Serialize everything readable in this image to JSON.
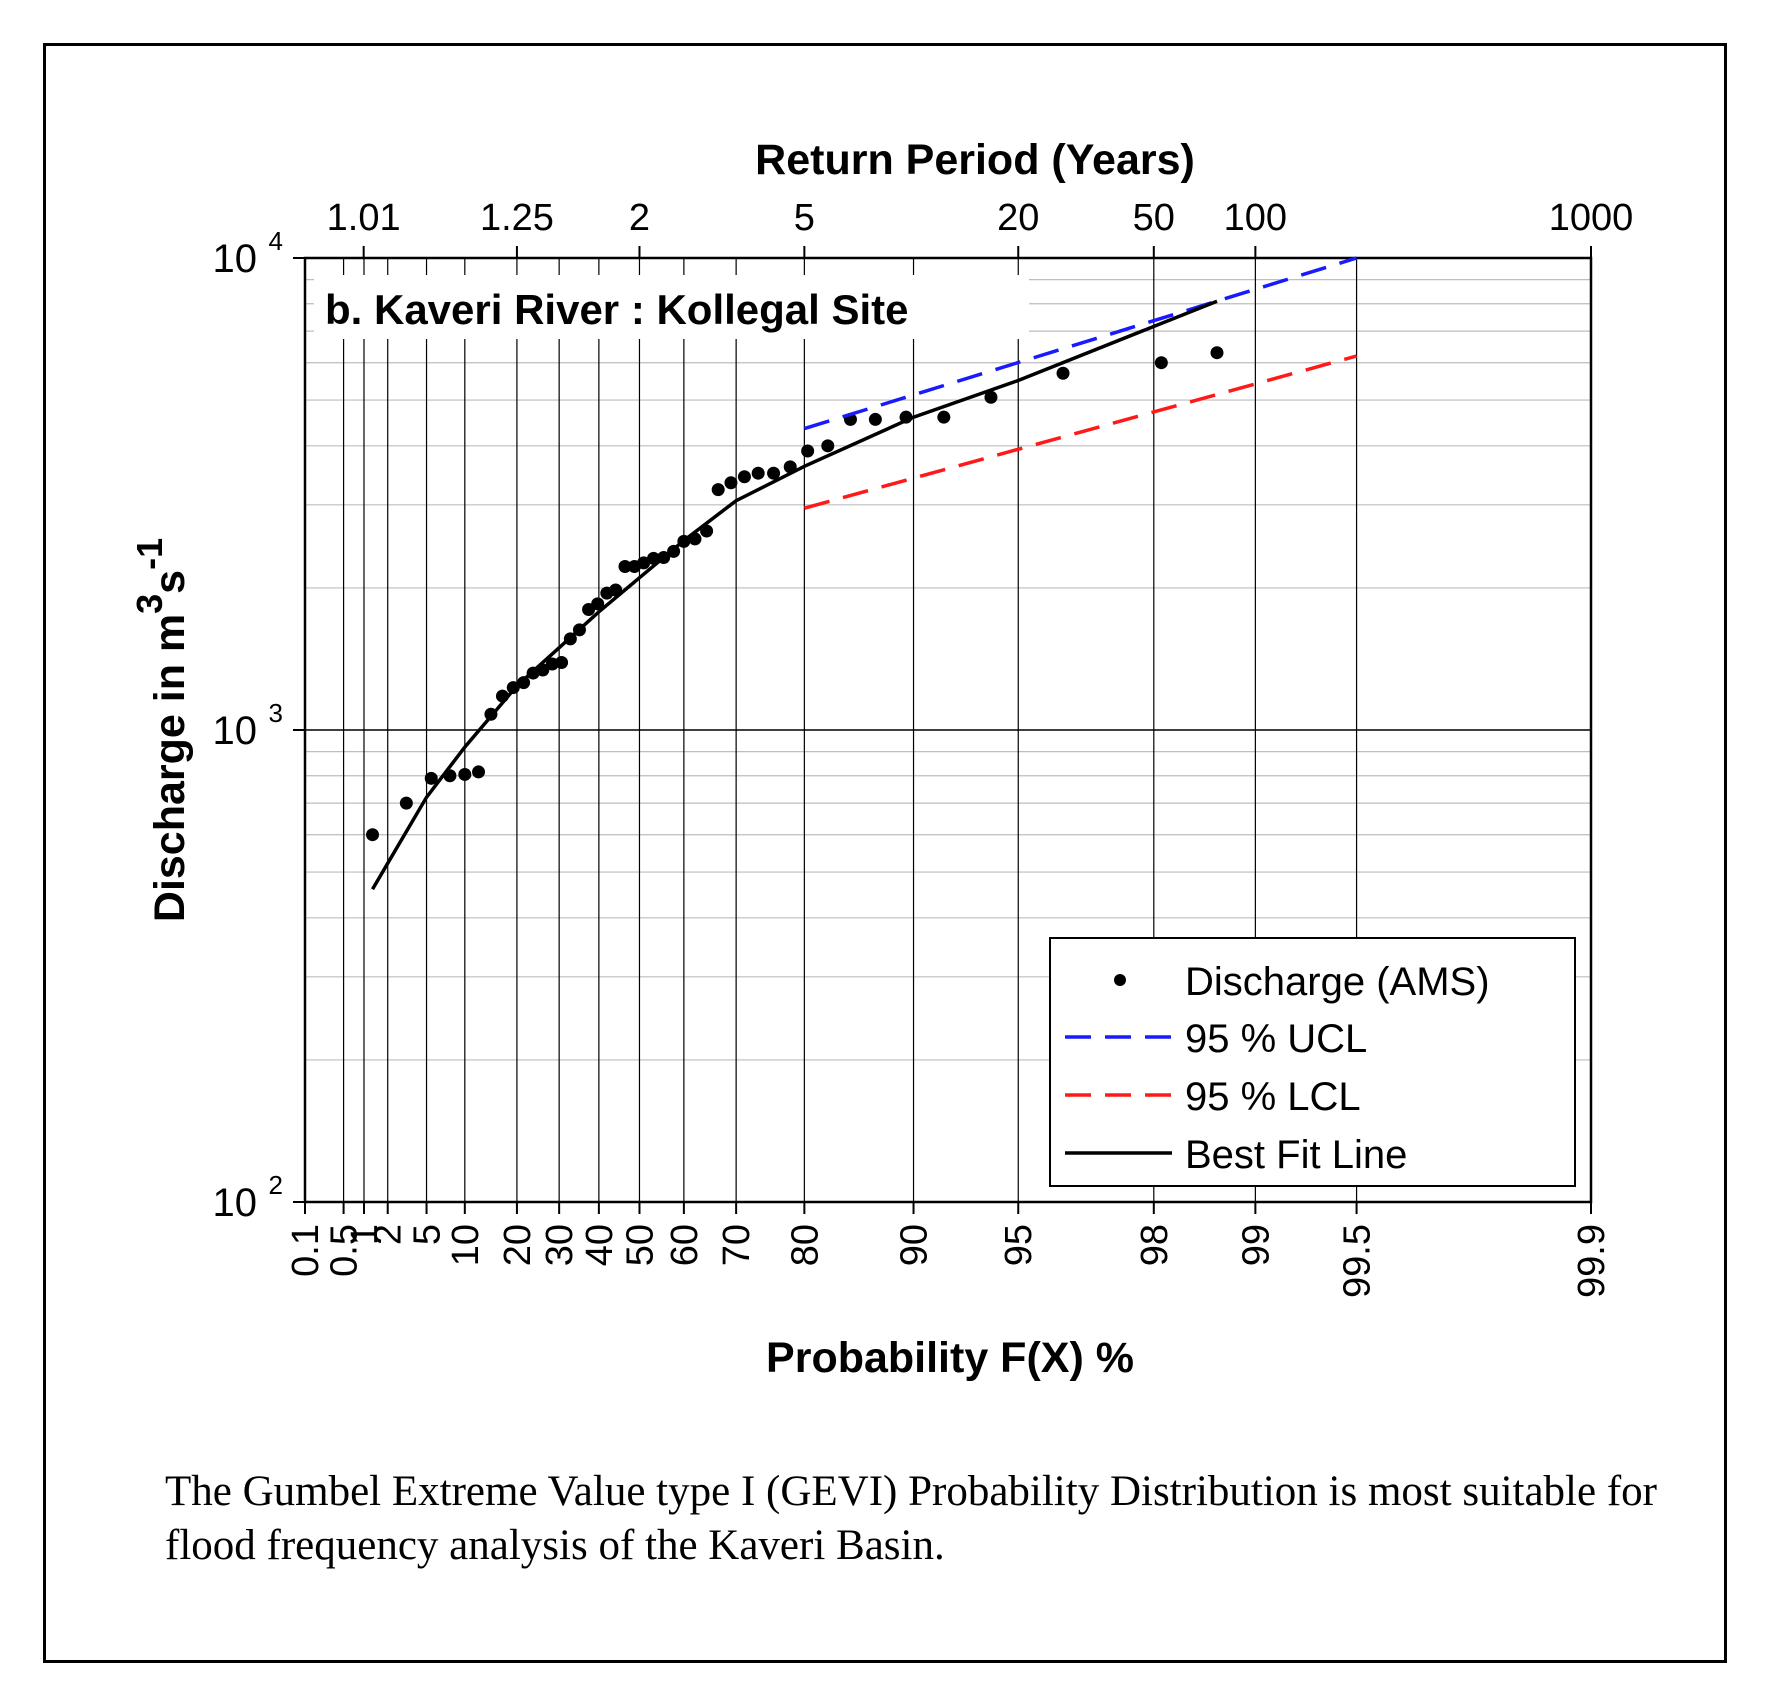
{
  "caption": "The Gumbel Extreme Value type I (GEVI) Probability Distribution is most suitable for flood frequency analysis of the Kaveri Basin.",
  "chart_data": {
    "type": "scatter",
    "title": "b. Kaveri River : Kollegal Site",
    "xlabel": "Probability F(X) %",
    "ylabel_base": "Discharge in m",
    "ylabel_sup1": "3",
    "ylabel_mid": "s",
    "ylabel_sup2": "-1",
    "top_axis_label": "Return Period (Years)",
    "x_scale": "gumbel-probability",
    "y_scale": "log",
    "xlim": [
      0.1,
      99.9
    ],
    "ylim": [
      100,
      10000
    ],
    "grid": true,
    "x_ticks": [
      0.1,
      0.5,
      1,
      2,
      5,
      10,
      20,
      30,
      40,
      50,
      60,
      70,
      80,
      90,
      95,
      98,
      99,
      99.5,
      99.9
    ],
    "x_tick_labels": [
      "0.1",
      "0.5",
      "1",
      "2",
      "5",
      "10",
      "20",
      "30",
      "40",
      "50",
      "60",
      "70",
      "80",
      "90",
      "95",
      "98",
      "99",
      "99.5",
      "99.9"
    ],
    "top_ticks": [
      {
        "T": 1.01,
        "label": "1.01"
      },
      {
        "T": 1.25,
        "label": "1.25"
      },
      {
        "T": 2,
        "label": "2"
      },
      {
        "T": 5,
        "label": "5"
      },
      {
        "T": 20,
        "label": "20"
      },
      {
        "T": 50,
        "label": "50"
      },
      {
        "T": 100,
        "label": "100"
      },
      {
        "T": 1000,
        "label": "1000"
      }
    ],
    "y_ticks": [
      {
        "value": 100,
        "base": "10",
        "exp": "2"
      },
      {
        "value": 1000,
        "base": "10",
        "exp": "3"
      },
      {
        "value": 10000,
        "base": "10",
        "exp": "4"
      }
    ],
    "series": [
      {
        "name": "Discharge (AMS)",
        "kind": "points",
        "color": "#000000",
        "points": [
          [
            1.3,
            600
          ],
          [
            3.2,
            700
          ],
          [
            5.5,
            790
          ],
          [
            7.8,
            800
          ],
          [
            10,
            805
          ],
          [
            12.3,
            815
          ],
          [
            14.6,
            1080
          ],
          [
            16.9,
            1180
          ],
          [
            19.2,
            1230
          ],
          [
            21.5,
            1260
          ],
          [
            23.7,
            1320
          ],
          [
            26,
            1340
          ],
          [
            28.3,
            1380
          ],
          [
            30.6,
            1390
          ],
          [
            32.8,
            1560
          ],
          [
            35.1,
            1630
          ],
          [
            37.4,
            1800
          ],
          [
            39.7,
            1850
          ],
          [
            42,
            1950
          ],
          [
            44.2,
            1980
          ],
          [
            46.5,
            2220
          ],
          [
            48.8,
            2220
          ],
          [
            51,
            2260
          ],
          [
            53.3,
            2310
          ],
          [
            55.6,
            2320
          ],
          [
            57.8,
            2390
          ],
          [
            60,
            2510
          ],
          [
            62.3,
            2540
          ],
          [
            64.6,
            2640
          ],
          [
            66.8,
            3230
          ],
          [
            69.1,
            3340
          ],
          [
            71.4,
            3440
          ],
          [
            73.6,
            3500
          ],
          [
            75.9,
            3500
          ],
          [
            78.2,
            3610
          ],
          [
            80.4,
            3900
          ],
          [
            82.7,
            4000
          ],
          [
            85,
            4550
          ],
          [
            87.2,
            4550
          ],
          [
            89.5,
            4600
          ],
          [
            91.8,
            4600
          ],
          [
            94,
            5070
          ],
          [
            96.3,
            5700
          ],
          [
            98.1,
            6000
          ],
          [
            98.7,
            6300
          ]
        ]
      },
      {
        "name": "95 % UCL",
        "kind": "dashed",
        "color": "#1a1aff",
        "points": [
          [
            80,
            4350
          ],
          [
            99.5,
            10000
          ]
        ]
      },
      {
        "name": "95 % LCL",
        "kind": "dashed",
        "color": "#ff1a1a",
        "points": [
          [
            80,
            2950
          ],
          [
            99.5,
            6200
          ]
        ]
      },
      {
        "name": "Best Fit Line",
        "kind": "line",
        "color": "#000000",
        "points": [
          [
            1.3,
            460
          ],
          [
            5,
            720
          ],
          [
            10,
            920
          ],
          [
            20,
            1240
          ],
          [
            40,
            1780
          ],
          [
            60,
            2520
          ],
          [
            70,
            3060
          ],
          [
            80,
            3620
          ],
          [
            90,
            4600
          ],
          [
            95,
            5500
          ],
          [
            98.7,
            8100
          ]
        ]
      }
    ],
    "legend_position": "bottom-right"
  }
}
